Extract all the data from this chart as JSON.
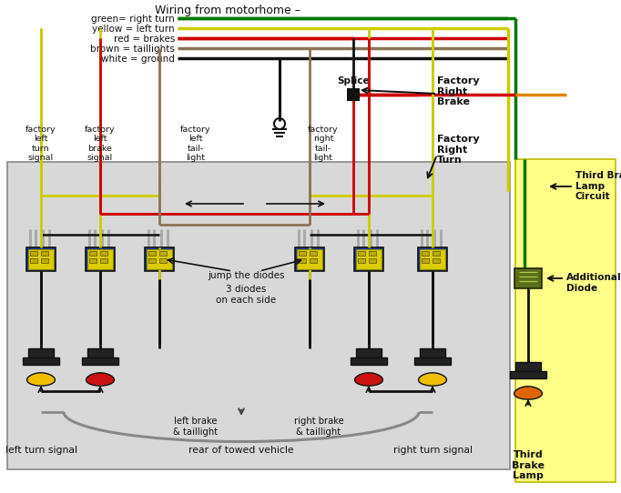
{
  "bg_color": "#ffffff",
  "main_panel_bg": "#d8d8d8",
  "right_panel_bg": "#ffff88",
  "wire_green": "#007700",
  "wire_yellow": "#cccc00",
  "wire_red": "#cc0000",
  "wire_brown": "#8B7355",
  "wire_black": "#111111",
  "diode_blue": "#1a3ab0",
  "diode_yellow_fill": "#ddcc00",
  "diode_green_fill": "#5a6e1a",
  "bulb_yellow": "#f0c000",
  "bulb_red": "#cc1111",
  "bulb_orange": "#dd6600",
  "title": "Wiring from motorhome –",
  "legend": [
    [
      "green= right turn",
      "#007700"
    ],
    [
      "yellow = left turn",
      "#cccc00"
    ],
    [
      "red = brakes",
      "#cc0000"
    ],
    [
      "brown = taillights",
      "#8B7355"
    ],
    [
      "white = ground",
      "#111111"
    ]
  ],
  "lbl_flt": "factory\nleft\nturn\nsignal",
  "lbl_flb": "factory\nleft\nbrake\nsignal",
  "lbl_fltl": "factory\nleft\ntail-\nlight",
  "lbl_frtl": "factory\nright\ntail-\nlight",
  "lbl_frb": "Factory\nRight\nBrake",
  "lbl_frt": "Factory\nRight\nTurn",
  "lbl_splice": "Splice",
  "lbl_jump": "jump the diodes",
  "lbl_3d": "3 diodes\non each side",
  "lbl_lbt": "left brake\n& taillight",
  "lbl_rbt": "right brake\n& taillight",
  "lbl_lts": "left turn signal",
  "lbl_rear": "rear of towed vehicle",
  "lbl_rts": "right turn signal",
  "lbl_tbc": "Third Brake\nLamp\nCircuit",
  "lbl_ad": "Additional\nDiode",
  "lbl_tbl": "Third\nBrake\nLamp"
}
